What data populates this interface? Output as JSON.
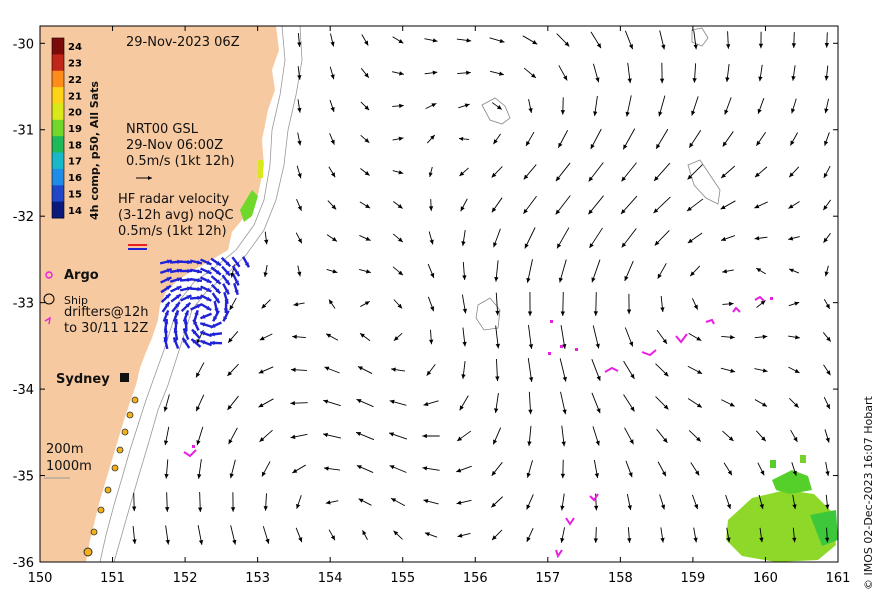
{
  "map": {
    "title": "29-Nov-2023 06Z",
    "extent": {
      "lon_min": 150,
      "lon_max": 161,
      "lat_min": -36,
      "lat_max": -29.8
    },
    "lon_ticks": [
      "150",
      "151",
      "152",
      "153",
      "154",
      "155",
      "156",
      "157",
      "158",
      "159",
      "160",
      "161"
    ],
    "lat_ticks": [
      "-30",
      "-31",
      "-32",
      "-33",
      "-34",
      "-35",
      "-36"
    ],
    "land_color": "#f7c9a0",
    "arrow_color": "#000000",
    "radar_color": "#1f22d6",
    "drifter_color": "#e81fe0"
  },
  "colorbar": {
    "title": "4h comp, p50, All Sats",
    "labels": [
      "24",
      "23",
      "22",
      "21",
      "20",
      "19",
      "18",
      "17",
      "16",
      "15",
      "14"
    ],
    "colors": [
      "#7a0b0b",
      "#c0271a",
      "#ff8c1a",
      "#ffd21a",
      "#d9e81a",
      "#6fd82a",
      "#1fb85a",
      "#18b8c8",
      "#1f8ce6",
      "#1f47c8",
      "#0b1a7a"
    ]
  },
  "legend": {
    "gsl_line1": "NRT00 GSL",
    "gsl_line2": "29-Nov 06:00Z",
    "gsl_line3": "0.5m/s (1kt 12h)",
    "radar_line1": "HF radar velocity",
    "radar_line2": "(3-12h avg) noQC",
    "radar_line3": "0.5m/s (1kt 12h)",
    "argo": "Argo",
    "ship": "Ship",
    "drifters_line1": "drifters@12h",
    "drifters_line2": "to 30/11 12Z",
    "sydney": "Sydney",
    "depth1": "200m",
    "depth2": "1000m"
  },
  "credit": "© IMOS 02-Dec-2023 16:07 Hobart"
}
